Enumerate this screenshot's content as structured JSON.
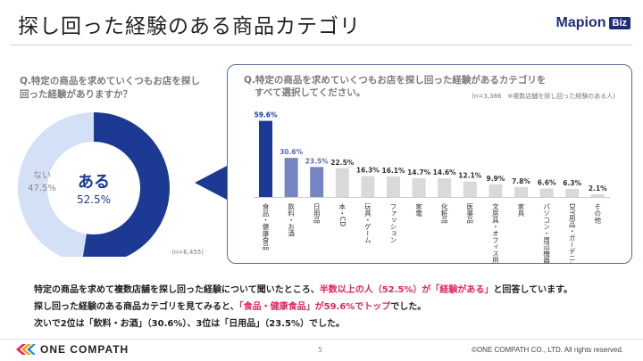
{
  "slide": {
    "title": "探し回った経験のある商品カテゴリ",
    "page_number": "5",
    "copyright": "©ONE COMPATH CO., LTD. All rights reserved."
  },
  "brand": {
    "name": "Mapion",
    "badge": "Biz",
    "footer_logo": "ONE COMPATH"
  },
  "left_question": {
    "line1": "Q.特定の商品を求めていくつもお店を探し",
    "line2": "回った経験がありますか？"
  },
  "right_question": {
    "line1": "Q.特定の商品を求めていくつもお店を探し回った経験があるカテゴリを",
    "line2": "すべて選択してください。",
    "note": "(n=3,386　※複数店舗を探し回った経験のある人)"
  },
  "summary": {
    "line1_a": "特定の商品を求めて複数店舗を探し回った経験について聞いたところ、",
    "line1_hl": "半数以上の人（52.5%）が「経験がある」",
    "line1_b": "と回答しています。",
    "line2_a": "探し回った経験のある商品カテゴリを見てみると、",
    "line2_hl": "「食品・健康食品」が59.6%でトップ",
    "line2_b": "でした。",
    "line3": "次いで2位は「飲料・お酒」（30.6%）、3位は「日用品」（23.5%）でした。"
  },
  "chart_data": [
    {
      "type": "pie",
      "donut": true,
      "n_label": "(n=6,455)",
      "slices": [
        {
          "label": "ある",
          "value": 52.5,
          "value_label": "52.5%",
          "color": "#1c3a94"
        },
        {
          "label": "ない",
          "value": 47.5,
          "value_label": "47.5%",
          "color": "#d4e0f5"
        }
      ]
    },
    {
      "type": "bar",
      "categories": [
        "食品・健康食品",
        "飲料・お酒",
        "日用品",
        "本・CD",
        "玩具・ゲーム",
        "ファッション",
        "家電",
        "化粧品",
        "医薬品",
        "文房具・オフィス用品",
        "家具",
        "パソコン・周辺機器",
        "DIY用品・ガーデニング",
        "その他"
      ],
      "values": [
        59.6,
        30.6,
        23.5,
        22.5,
        16.3,
        16.1,
        14.7,
        14.6,
        12.1,
        9.9,
        7.8,
        6.6,
        6.3,
        2.1
      ],
      "value_labels": [
        "59.6%",
        "30.6%",
        "23.5%",
        "22.5%",
        "16.3%",
        "16.1%",
        "14.7%",
        "14.6%",
        "12.1%",
        "9.9%",
        "7.8%",
        "6.6%",
        "6.3%",
        "2.1%"
      ],
      "bar_colors": [
        "#1c3a94",
        "#7585c4",
        "#7585c4",
        "#d9d9d9",
        "#d9d9d9",
        "#d9d9d9",
        "#d9d9d9",
        "#d9d9d9",
        "#d9d9d9",
        "#d9d9d9",
        "#d9d9d9",
        "#d9d9d9",
        "#d9d9d9",
        "#d9d9d9"
      ],
      "label_colors": [
        "#1c3a94",
        "#5a6bb8",
        "#5a6bb8",
        "#333333",
        "#333333",
        "#333333",
        "#333333",
        "#333333",
        "#333333",
        "#333333",
        "#333333",
        "#333333",
        "#333333",
        "#333333"
      ],
      "ylim": [
        0,
        60
      ]
    }
  ]
}
